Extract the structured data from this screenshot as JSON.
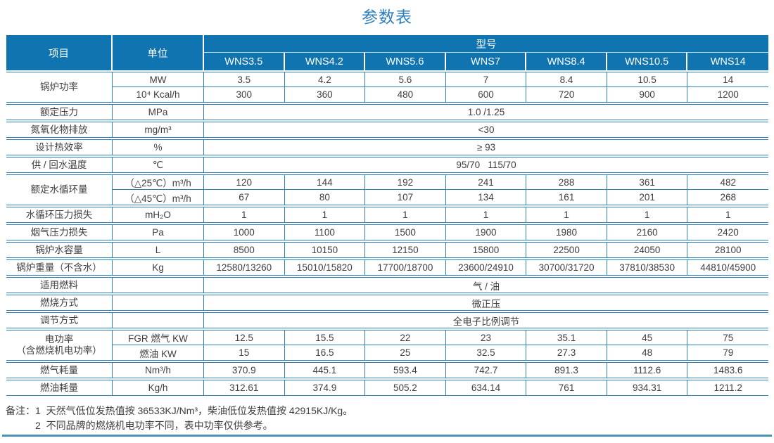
{
  "title": "参数表",
  "header": {
    "item": "项目",
    "unit": "单位",
    "model": "型号",
    "models": [
      "WNS3.5",
      "WNS4.2",
      "WNS5.6",
      "WNS7",
      "WNS8.4",
      "WNS10.5",
      "WNS14"
    ]
  },
  "rows": [
    {
      "label": "锅炉功率",
      "subrows": [
        {
          "unit": "MW",
          "values": [
            "3.5",
            "4.2",
            "5.6",
            "7",
            "8.4",
            "10.5",
            "14"
          ]
        },
        {
          "unit": "10⁴ Kcal/h",
          "values": [
            "300",
            "360",
            "480",
            "600",
            "720",
            "900",
            "1200"
          ]
        }
      ]
    },
    {
      "label": "额定压力",
      "unit": "MPa",
      "merged": "1.0 /1.25"
    },
    {
      "label": "氮氧化物排放",
      "unit": "mg/m³",
      "merged": "<30"
    },
    {
      "label": "设计热效率",
      "unit": "%",
      "merged": "≥ 93"
    },
    {
      "label": "供 / 回水温度",
      "unit": "℃",
      "merged": "95/70   115/70"
    },
    {
      "label": "额定水循环量",
      "subrows": [
        {
          "unit": "（△25℃）m³/h",
          "values": [
            "120",
            "144",
            "192",
            "241",
            "288",
            "361",
            "482"
          ]
        },
        {
          "unit": "（△45℃）m³/h",
          "values": [
            "67",
            "80",
            "107",
            "134",
            "161",
            "201",
            "268"
          ]
        }
      ]
    },
    {
      "label": "水循环压力损失",
      "unit": "mH₂O",
      "values": [
        "1",
        "1",
        "1",
        "1",
        "1",
        "1",
        "1"
      ]
    },
    {
      "label": "烟气压力损失",
      "unit": "Pa",
      "values": [
        "1000",
        "1100",
        "1500",
        "1900",
        "1980",
        "2160",
        "2420"
      ]
    },
    {
      "label": "锅炉水容量",
      "unit": "L",
      "values": [
        "8500",
        "10150",
        "12150",
        "15800",
        "22500",
        "24050",
        "28100"
      ]
    },
    {
      "label": "锅炉重量（不含水）",
      "unit": "Kg",
      "values": [
        "12580/13260",
        "15010/15820",
        "17700/18700",
        "23600/24910",
        "30700/31720",
        "37810/38530",
        "44810/45900"
      ]
    },
    {
      "label": "适用燃料",
      "unit": "",
      "merged": "气 / 油"
    },
    {
      "label": "燃烧方式",
      "unit": "",
      "merged": "微正压"
    },
    {
      "label": "调节方式",
      "unit": "",
      "merged": "全电子比例调节"
    },
    {
      "label": "电功率",
      "label2": "（含燃烧机电功率）",
      "subrows": [
        {
          "unit": "FGR 燃气 KW",
          "values": [
            "12.5",
            "15.5",
            "22",
            "23",
            "35.1",
            "45",
            "75"
          ]
        },
        {
          "unit": "燃油 KW",
          "values": [
            "15",
            "16.5",
            "25",
            "32.5",
            "27.3",
            "48",
            "79"
          ]
        }
      ]
    },
    {
      "label": "燃气耗量",
      "unit": "Nm³/h",
      "values": [
        "370.9",
        "445.1",
        "593.4",
        "742.7",
        "891.3",
        "1112.6",
        "1483.6"
      ]
    },
    {
      "label": "燃油耗量",
      "unit": "Kg/h",
      "values": [
        "312.61",
        "374.9",
        "505.2",
        "634.14",
        "761",
        "934.31",
        "1211.2"
      ]
    }
  ],
  "notes": {
    "prefix": "备注：",
    "items": [
      "1  天然气低位发热值按 36533KJ/Nm³，柴油低位发热值按 42915KJ/Kg。",
      "2  不同品牌的燃烧机电功率不同，表中功率仅供参考。"
    ]
  },
  "colors": {
    "header_bg": "#0f74b0",
    "border_line": "#2f81b6",
    "title": "#2d7ebc",
    "body_text": "#3e3e3e",
    "bottom_rule": "#4a92ba"
  }
}
